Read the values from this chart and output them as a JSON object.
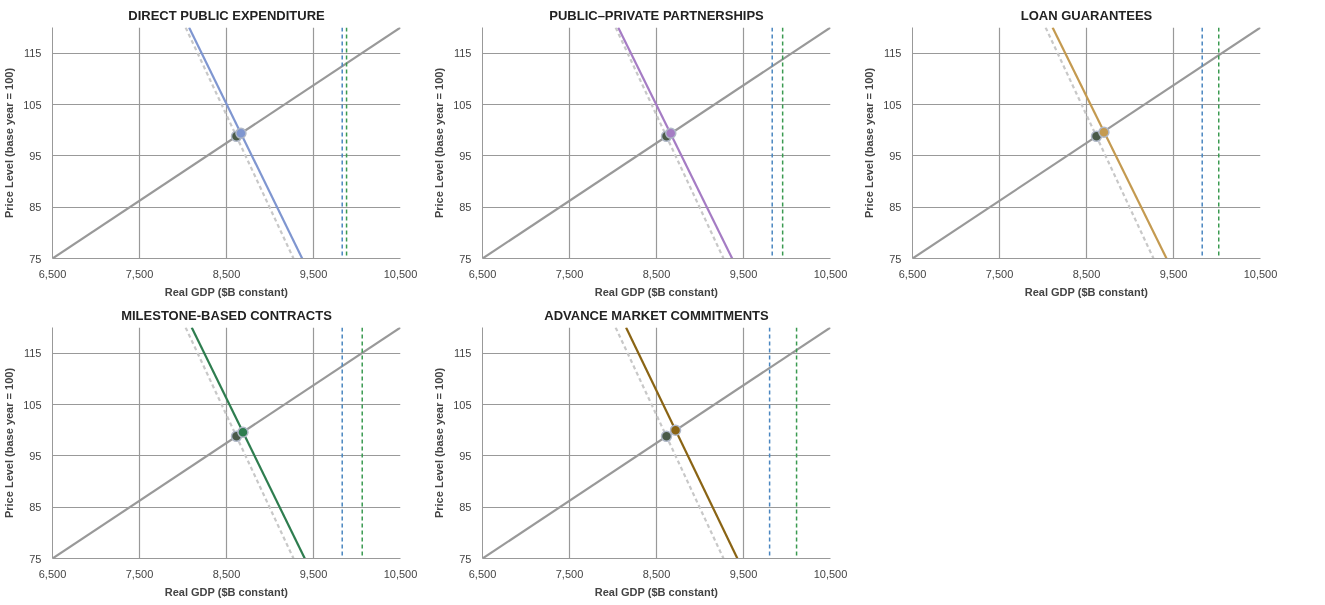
{
  "chart_data": [
    {
      "type": "line",
      "title": "DIRECT PUBLIC EXPENDITURE",
      "xlabel": "Real GDP ($B constant)",
      "ylabel": "Price Level (base year = 100)",
      "xlim": [
        6500,
        10500
      ],
      "ylim": [
        75,
        120
      ],
      "xticks": [
        {
          "value": 6500,
          "label": "6,500"
        },
        {
          "value": 7500,
          "label": "7,500"
        },
        {
          "value": 8500,
          "label": "8,500"
        },
        {
          "value": 9500,
          "label": "9,500"
        },
        {
          "value": 10500,
          "label": "10,500"
        }
      ],
      "yticks": [
        75,
        85,
        95,
        105,
        115
      ],
      "grid": true,
      "series": [
        {
          "type": "line",
          "color": "#999999",
          "x": [
            6500,
            10500
          ],
          "values": [
            75,
            120
          ],
          "line_style": "solid"
        },
        {
          "type": "line",
          "color": "#c8c8c8",
          "x": [
            8030,
            9270
          ],
          "values": [
            120,
            75
          ],
          "line_style": "dashed"
        },
        {
          "type": "line",
          "color": "#7f96d0",
          "x": [
            8070,
            9370
          ],
          "values": [
            120,
            75
          ],
          "line_style": "solid"
        },
        {
          "type": "scatter",
          "color": "#4a5a48",
          "x": [
            8615
          ],
          "values": [
            98.8
          ],
          "marker": "circle"
        },
        {
          "type": "scatter",
          "color": "#7f96d0",
          "x": [
            8666
          ],
          "values": [
            99.4
          ],
          "marker": "circle"
        }
      ],
      "ref_lines": [
        {
          "axis": "x",
          "value": 9830,
          "color": "#4a86c0",
          "line_style": "dashed"
        },
        {
          "axis": "x",
          "value": 9880,
          "color": "#3a9a50",
          "line_style": "dashed"
        }
      ]
    },
    {
      "type": "line",
      "title": "PUBLIC–PRIVATE PARTNERSHIPS",
      "xlabel": "Real GDP ($B constant)",
      "ylabel": "Price Level (base year = 100)",
      "xlim": [
        6500,
        10500
      ],
      "ylim": [
        75,
        120
      ],
      "xticks": [
        {
          "value": 6500,
          "label": "6,500"
        },
        {
          "value": 7500,
          "label": "7,500"
        },
        {
          "value": 8500,
          "label": "8,500"
        },
        {
          "value": 9500,
          "label": "9,500"
        },
        {
          "value": 10500,
          "label": "10,500"
        }
      ],
      "yticks": [
        75,
        85,
        95,
        105,
        115
      ],
      "grid": true,
      "series": [
        {
          "type": "line",
          "color": "#999999",
          "x": [
            6500,
            10500
          ],
          "values": [
            75,
            120
          ],
          "line_style": "solid"
        },
        {
          "type": "line",
          "color": "#c8c8c8",
          "x": [
            8030,
            9270
          ],
          "values": [
            120,
            75
          ],
          "line_style": "dashed"
        },
        {
          "type": "line",
          "color": "#a57cc4",
          "x": [
            8060,
            9370
          ],
          "values": [
            120,
            75
          ],
          "line_style": "solid"
        },
        {
          "type": "scatter",
          "color": "#4a5a48",
          "x": [
            8615
          ],
          "values": [
            98.8
          ],
          "marker": "circle"
        },
        {
          "type": "scatter",
          "color": "#a57cc4",
          "x": [
            8664
          ],
          "values": [
            99.4
          ],
          "marker": "circle"
        }
      ],
      "ref_lines": [
        {
          "axis": "x",
          "value": 9830,
          "color": "#4a86c0",
          "line_style": "dashed"
        },
        {
          "axis": "x",
          "value": 9950,
          "color": "#3a9a50",
          "line_style": "dashed"
        }
      ]
    },
    {
      "type": "line",
      "title": "LOAN GUARANTEES",
      "xlabel": "Real GDP ($B constant)",
      "ylabel": "Price Level (base year = 100)",
      "xlim": [
        6500,
        10500
      ],
      "ylim": [
        75,
        120
      ],
      "xticks": [
        {
          "value": 6500,
          "label": "6,500"
        },
        {
          "value": 7500,
          "label": "7,500"
        },
        {
          "value": 8500,
          "label": "8,500"
        },
        {
          "value": 9500,
          "label": "9,500"
        },
        {
          "value": 10500,
          "label": "10,500"
        }
      ],
      "yticks": [
        75,
        85,
        95,
        105,
        115
      ],
      "grid": true,
      "series": [
        {
          "type": "line",
          "color": "#999999",
          "x": [
            6500,
            10500
          ],
          "values": [
            75,
            120
          ],
          "line_style": "solid"
        },
        {
          "type": "line",
          "color": "#c8c8c8",
          "x": [
            8030,
            9270
          ],
          "values": [
            120,
            75
          ],
          "line_style": "dashed"
        },
        {
          "type": "line",
          "color": "#c49a50",
          "x": [
            8110,
            9420
          ],
          "values": [
            120,
            75
          ],
          "line_style": "solid"
        },
        {
          "type": "scatter",
          "color": "#4a5a48",
          "x": [
            8615
          ],
          "values": [
            98.8
          ],
          "marker": "circle"
        },
        {
          "type": "scatter",
          "color": "#c49a50",
          "x": [
            8700
          ],
          "values": [
            99.6
          ],
          "marker": "circle"
        }
      ],
      "ref_lines": [
        {
          "axis": "x",
          "value": 9830,
          "color": "#4a86c0",
          "line_style": "dashed"
        },
        {
          "axis": "x",
          "value": 10020,
          "color": "#3a9a50",
          "line_style": "dashed"
        }
      ]
    },
    {
      "type": "line",
      "title": "MILESTONE-BASED CONTRACTS",
      "xlabel": "Real GDP ($B constant)",
      "ylabel": "Price Level (base year = 100)",
      "xlim": [
        6500,
        10500
      ],
      "ylim": [
        75,
        120
      ],
      "xticks": [
        {
          "value": 6500,
          "label": "6,500"
        },
        {
          "value": 7500,
          "label": "7,500"
        },
        {
          "value": 8500,
          "label": "8,500"
        },
        {
          "value": 9500,
          "label": "9,500"
        },
        {
          "value": 10500,
          "label": "10,500"
        }
      ],
      "yticks": [
        75,
        85,
        95,
        105,
        115
      ],
      "grid": true,
      "series": [
        {
          "type": "line",
          "color": "#999999",
          "x": [
            6500,
            10500
          ],
          "values": [
            75,
            120
          ],
          "line_style": "solid"
        },
        {
          "type": "line",
          "color": "#c8c8c8",
          "x": [
            8030,
            9270
          ],
          "values": [
            120,
            75
          ],
          "line_style": "dashed"
        },
        {
          "type": "line",
          "color": "#2e7d4f",
          "x": [
            8100,
            9400
          ],
          "values": [
            120,
            75
          ],
          "line_style": "solid"
        },
        {
          "type": "scatter",
          "color": "#4a5a48",
          "x": [
            8615
          ],
          "values": [
            98.8
          ],
          "marker": "circle"
        },
        {
          "type": "scatter",
          "color": "#2e7d4f",
          "x": [
            8689
          ],
          "values": [
            99.6
          ],
          "marker": "circle"
        }
      ],
      "ref_lines": [
        {
          "axis": "x",
          "value": 9830,
          "color": "#4a86c0",
          "line_style": "dashed"
        },
        {
          "axis": "x",
          "value": 10060,
          "color": "#3a9a50",
          "line_style": "dashed"
        }
      ]
    },
    {
      "type": "line",
      "title": "ADVANCE MARKET COMMITMENTS",
      "xlabel": "Real GDP ($B constant)",
      "ylabel": "Price Level (base year = 100)",
      "xlim": [
        6500,
        10500
      ],
      "ylim": [
        75,
        120
      ],
      "xticks": [
        {
          "value": 6500,
          "label": "6,500"
        },
        {
          "value": 7500,
          "label": "7,500"
        },
        {
          "value": 8500,
          "label": "8,500"
        },
        {
          "value": 9500,
          "label": "9,500"
        },
        {
          "value": 10500,
          "label": "10,500"
        }
      ],
      "yticks": [
        75,
        85,
        95,
        105,
        115
      ],
      "grid": true,
      "series": [
        {
          "type": "line",
          "color": "#999999",
          "x": [
            6500,
            10500
          ],
          "values": [
            75,
            120
          ],
          "line_style": "solid"
        },
        {
          "type": "line",
          "color": "#c8c8c8",
          "x": [
            8030,
            9270
          ],
          "values": [
            120,
            75
          ],
          "line_style": "dashed"
        },
        {
          "type": "line",
          "color": "#8a6414",
          "x": [
            8150,
            9430
          ],
          "values": [
            120,
            75
          ],
          "line_style": "solid"
        },
        {
          "type": "scatter",
          "color": "#4a5a48",
          "x": [
            8615
          ],
          "values": [
            98.8
          ],
          "marker": "circle"
        },
        {
          "type": "scatter",
          "color": "#8a6414",
          "x": [
            8719
          ],
          "values": [
            100
          ],
          "marker": "circle"
        }
      ],
      "ref_lines": [
        {
          "axis": "x",
          "value": 9800,
          "color": "#4a86c0",
          "line_style": "dashed"
        },
        {
          "axis": "x",
          "value": 10110,
          "color": "#3a9a50",
          "line_style": "dashed"
        }
      ]
    }
  ]
}
